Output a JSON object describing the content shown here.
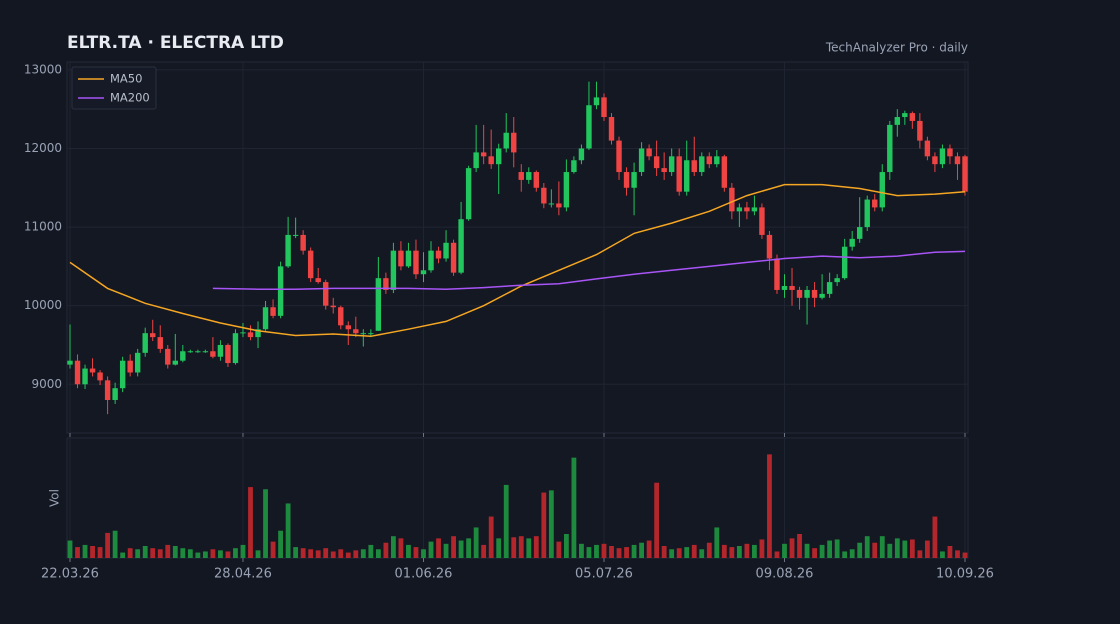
{
  "chart_data": {
    "type": "candlestick",
    "title": "ELTR.TA  ·  ELECTRA LTD",
    "subtitle": "TechAnalyzer Pro · daily",
    "volume_label": "Vol",
    "up_color": "#22c55e",
    "down_color": "#ef4444",
    "volume_up_color": "#1e8a3e",
    "volume_down_color": "#b3262b",
    "legend": "upper left",
    "grid": true,
    "ylim": [
      8380,
      13100
    ],
    "yticks": [
      9000,
      10000,
      11000,
      12000,
      13000
    ],
    "volume_ylim": [
      0,
      110
    ],
    "xlim": [
      0,
      119
    ],
    "xticks": [
      {
        "value": 0,
        "label": "22.03.26"
      },
      {
        "value": 23,
        "label": "28.04.26"
      },
      {
        "value": 47,
        "label": "01.06.26"
      },
      {
        "value": 71,
        "label": "05.07.26"
      },
      {
        "value": 95,
        "label": "09.08.26"
      },
      {
        "value": 119,
        "label": "10.09.26"
      }
    ],
    "ohlc": [
      [
        9250,
        9760,
        9200,
        9300
      ],
      [
        9300,
        9380,
        8950,
        9000
      ],
      [
        9000,
        9250,
        8940,
        9200
      ],
      [
        9200,
        9330,
        9100,
        9150
      ],
      [
        9150,
        9180,
        8990,
        9050
      ],
      [
        9050,
        9100,
        8620,
        8800
      ],
      [
        8800,
        9020,
        8750,
        8950
      ],
      [
        8950,
        9350,
        8900,
        9300
      ],
      [
        9300,
        9380,
        9100,
        9150
      ],
      [
        9150,
        9450,
        9100,
        9400
      ],
      [
        9400,
        9720,
        9350,
        9650
      ],
      [
        9650,
        9820,
        9550,
        9600
      ],
      [
        9600,
        9750,
        9400,
        9450
      ],
      [
        9450,
        9500,
        9200,
        9250
      ],
      [
        9250,
        9640,
        9240,
        9300
      ],
      [
        9300,
        9500,
        9280,
        9420
      ],
      [
        9420,
        9440,
        9400,
        9420
      ],
      [
        9420,
        9440,
        9400,
        9420
      ],
      [
        9420,
        9440,
        9400,
        9420
      ],
      [
        9420,
        9600,
        9330,
        9350
      ],
      [
        9350,
        9560,
        9300,
        9500
      ],
      [
        9500,
        9520,
        9220,
        9270
      ],
      [
        9270,
        9700,
        9250,
        9650
      ],
      [
        9650,
        9780,
        9600,
        9660
      ],
      [
        9660,
        9750,
        9560,
        9600
      ],
      [
        9600,
        9800,
        9460,
        9700
      ],
      [
        9700,
        10060,
        9680,
        9980
      ],
      [
        9980,
        10080,
        9840,
        9870
      ],
      [
        9870,
        10560,
        9840,
        10500
      ],
      [
        10500,
        11130,
        10480,
        10900
      ],
      [
        10900,
        11120,
        10860,
        10900
      ],
      [
        10900,
        10960,
        10650,
        10700
      ],
      [
        10700,
        10740,
        10300,
        10350
      ],
      [
        10350,
        10480,
        10280,
        10300
      ],
      [
        10300,
        10330,
        9950,
        10000
      ],
      [
        10000,
        10100,
        9900,
        9980
      ],
      [
        9980,
        10000,
        9700,
        9750
      ],
      [
        9750,
        9800,
        9500,
        9700
      ],
      [
        9700,
        9860,
        9600,
        9650
      ],
      [
        9650,
        9700,
        9480,
        9650
      ],
      [
        9650,
        9700,
        9600,
        9650
      ],
      [
        9680,
        10620,
        9680,
        10350
      ],
      [
        10350,
        10420,
        10150,
        10200
      ],
      [
        10200,
        10800,
        10160,
        10700
      ],
      [
        10700,
        10820,
        10450,
        10500
      ],
      [
        10500,
        10800,
        10480,
        10700
      ],
      [
        10700,
        10840,
        10340,
        10400
      ],
      [
        10400,
        10680,
        10300,
        10450
      ],
      [
        10450,
        10820,
        10420,
        10700
      ],
      [
        10700,
        10750,
        10540,
        10600
      ],
      [
        10600,
        10960,
        10560,
        10800
      ],
      [
        10800,
        10840,
        10380,
        10420
      ],
      [
        10420,
        11320,
        10400,
        11100
      ],
      [
        11100,
        11780,
        11080,
        11750
      ],
      [
        11750,
        12300,
        11700,
        11950
      ],
      [
        11950,
        12300,
        11800,
        11900
      ],
      [
        11900,
        12240,
        11740,
        11800
      ],
      [
        11800,
        12060,
        11420,
        12000
      ],
      [
        12000,
        12450,
        11950,
        12200
      ],
      [
        12200,
        12400,
        11760,
        11950
      ],
      [
        11700,
        11800,
        11450,
        11600
      ],
      [
        11600,
        11760,
        11550,
        11700
      ],
      [
        11700,
        11720,
        11450,
        11500
      ],
      [
        11500,
        11560,
        11240,
        11300
      ],
      [
        11300,
        11480,
        11250,
        11300
      ],
      [
        11300,
        11580,
        11150,
        11250
      ],
      [
        11250,
        11860,
        11200,
        11700
      ],
      [
        11700,
        11900,
        11680,
        11850
      ],
      [
        11850,
        12050,
        11800,
        12000
      ],
      [
        12000,
        12850,
        11980,
        12550
      ],
      [
        12550,
        12850,
        12500,
        12650
      ],
      [
        12650,
        12700,
        12350,
        12400
      ],
      [
        12400,
        12450,
        12050,
        12100
      ],
      [
        12100,
        12150,
        11600,
        11700
      ],
      [
        11700,
        11760,
        11400,
        11500
      ],
      [
        11500,
        11820,
        11150,
        11700
      ],
      [
        11700,
        12080,
        11650,
        12000
      ],
      [
        12000,
        12050,
        11850,
        11900
      ],
      [
        11900,
        12100,
        11650,
        11750
      ],
      [
        11750,
        11950,
        11600,
        11700
      ],
      [
        11700,
        12000,
        11650,
        11900
      ],
      [
        11900,
        12000,
        11400,
        11450
      ],
      [
        11450,
        12100,
        11400,
        11850
      ],
      [
        11850,
        12150,
        11650,
        11700
      ],
      [
        11700,
        11950,
        11650,
        11900
      ],
      [
        11900,
        11950,
        11750,
        11800
      ],
      [
        11800,
        11980,
        11760,
        11900
      ],
      [
        11900,
        11920,
        11450,
        11500
      ],
      [
        11500,
        11560,
        11100,
        11200
      ],
      [
        11200,
        11300,
        11000,
        11250
      ],
      [
        11250,
        11320,
        11100,
        11200
      ],
      [
        11200,
        11400,
        11150,
        11250
      ],
      [
        11250,
        11300,
        10850,
        10900
      ],
      [
        10900,
        10950,
        10450,
        10600
      ],
      [
        10600,
        10650,
        10150,
        10200
      ],
      [
        10200,
        10400,
        10100,
        10250
      ],
      [
        10250,
        10480,
        10000,
        10200
      ],
      [
        10200,
        10240,
        9950,
        10100
      ],
      [
        10100,
        10250,
        9760,
        10200
      ],
      [
        10200,
        10300,
        9980,
        10100
      ],
      [
        10100,
        10400,
        10080,
        10150
      ],
      [
        10150,
        10420,
        10100,
        10300
      ],
      [
        10300,
        10400,
        10250,
        10350
      ],
      [
        10350,
        10850,
        10330,
        10750
      ],
      [
        10750,
        10950,
        10700,
        10850
      ],
      [
        10850,
        11380,
        10800,
        11000
      ],
      [
        11000,
        11400,
        10950,
        11350
      ],
      [
        11350,
        11420,
        11200,
        11250
      ],
      [
        11250,
        11800,
        11200,
        11700
      ],
      [
        11700,
        12350,
        11600,
        12300
      ],
      [
        12300,
        12500,
        12150,
        12400
      ],
      [
        12400,
        12480,
        12300,
        12450
      ],
      [
        12450,
        12470,
        12250,
        12350
      ],
      [
        12350,
        12450,
        12000,
        12100
      ],
      [
        12100,
        12150,
        11850,
        11900
      ],
      [
        11900,
        11950,
        11700,
        11800
      ],
      [
        11800,
        12050,
        11750,
        12000
      ],
      [
        12000,
        12050,
        11800,
        11900
      ],
      [
        11900,
        11950,
        11600,
        11800
      ],
      [
        11900,
        11920,
        11400,
        11450
      ]
    ],
    "volumes": [
      16,
      10,
      12,
      11,
      10,
      23,
      25,
      5,
      9,
      8,
      11,
      9,
      8,
      12,
      11,
      9,
      8,
      5,
      6,
      8,
      7,
      6,
      9,
      12,
      65,
      7,
      63,
      15,
      25,
      50,
      10,
      9,
      8,
      7,
      9,
      6,
      8,
      5,
      7,
      8,
      12,
      8,
      14,
      20,
      18,
      12,
      10,
      8,
      15,
      18,
      13,
      20,
      16,
      18,
      28,
      12,
      38,
      18,
      67,
      19,
      20,
      18,
      20,
      60,
      62,
      15,
      22,
      92,
      13,
      10,
      12,
      13,
      11,
      9,
      10,
      12,
      14,
      16,
      69,
      11,
      8,
      9,
      10,
      12,
      8,
      14,
      28,
      12,
      10,
      11,
      13,
      12,
      17,
      95,
      6,
      13,
      18,
      22,
      13,
      9,
      12,
      16,
      17,
      6,
      8,
      14,
      20,
      14,
      20,
      13,
      18,
      16,
      17,
      7,
      16,
      38,
      6,
      11,
      7,
      5
    ],
    "series": [
      {
        "name": "MA50",
        "color": "#f5a623",
        "x": [
          0,
          5,
          10,
          15,
          20,
          25,
          30,
          35,
          40,
          45,
          50,
          55,
          60,
          65,
          70,
          75,
          80,
          85,
          90,
          95,
          100,
          105,
          110,
          115,
          119
        ],
        "values": [
          10550,
          10220,
          10030,
          9900,
          9780,
          9680,
          9620,
          9640,
          9610,
          9700,
          9800,
          10000,
          10250,
          10450,
          10650,
          10920,
          11050,
          11200,
          11400,
          11540,
          11540,
          11490,
          11400,
          11420,
          11450
        ]
      },
      {
        "name": "MA200",
        "color": "#a855f7",
        "x": [
          19,
          25,
          30,
          35,
          40,
          45,
          50,
          55,
          60,
          65,
          70,
          75,
          80,
          85,
          90,
          95,
          100,
          105,
          110,
          115,
          119
        ],
        "values": [
          10220,
          10210,
          10210,
          10220,
          10220,
          10220,
          10210,
          10230,
          10260,
          10280,
          10340,
          10400,
          10450,
          10500,
          10550,
          10600,
          10630,
          10610,
          10630,
          10680,
          10690
        ]
      }
    ]
  }
}
